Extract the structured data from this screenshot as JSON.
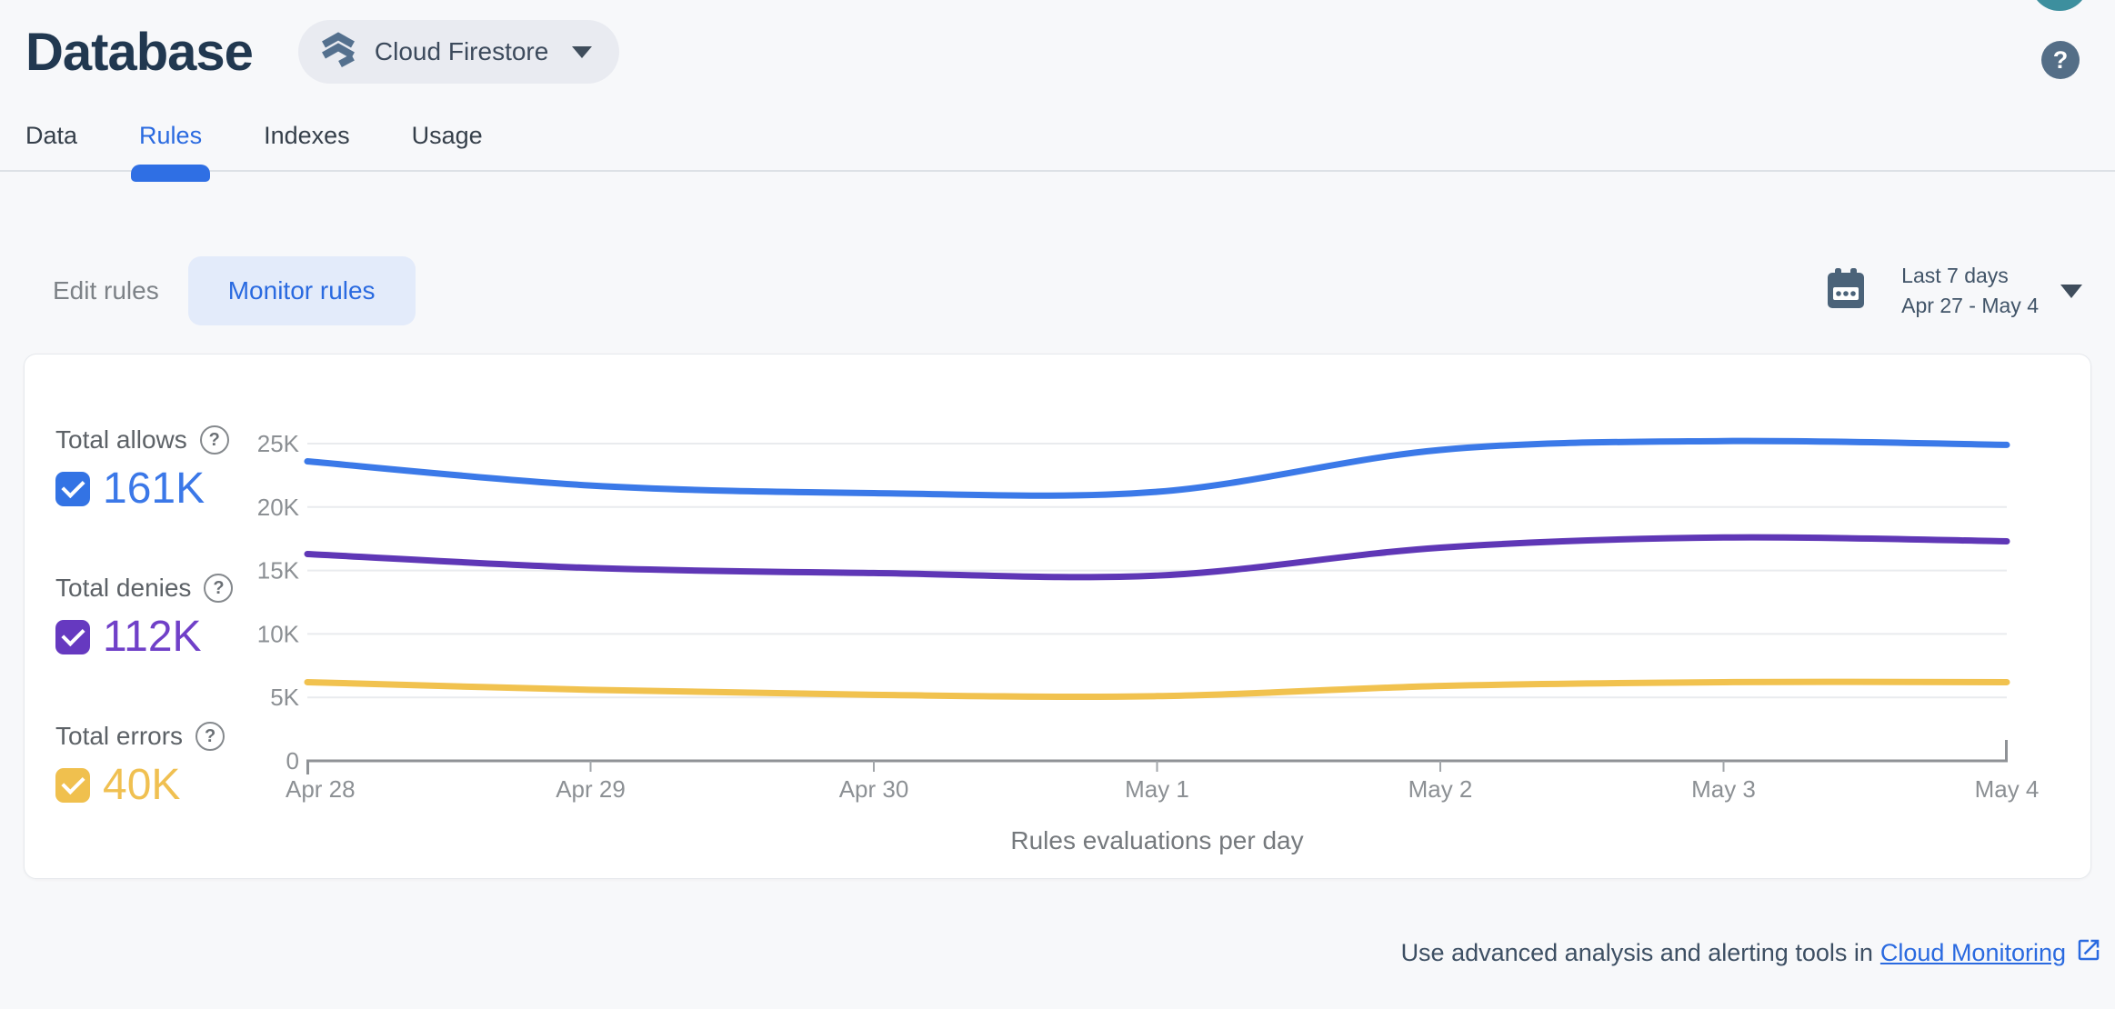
{
  "header": {
    "title": "Database",
    "product_selector": {
      "label": "Cloud Firestore"
    },
    "help_glyph": "?"
  },
  "tabs": [
    {
      "label": "Data",
      "active": false
    },
    {
      "label": "Rules",
      "active": true
    },
    {
      "label": "Indexes",
      "active": false
    },
    {
      "label": "Usage",
      "active": false
    }
  ],
  "toolbar": {
    "edit_rules_label": "Edit rules",
    "monitor_rules_label": "Monitor rules",
    "date_range": {
      "primary": "Last 7 days",
      "secondary": "Apr 27 - May 4"
    }
  },
  "legend": [
    {
      "label": "Total allows",
      "value": "161K",
      "color": "#3373e4",
      "text_color": "#3b78e8",
      "checked": true
    },
    {
      "label": "Total denies",
      "value": "112K",
      "color": "#6639c0",
      "text_color": "#7040c8",
      "checked": true
    },
    {
      "label": "Total errors",
      "value": "40K",
      "color": "#f0c04e",
      "text_color": "#f0c051",
      "checked": true
    }
  ],
  "chart_data": {
    "type": "line",
    "title": "Rules evaluations per day",
    "x": [
      "Apr 28",
      "Apr 29",
      "Apr 30",
      "May 1",
      "May 2",
      "May 3",
      "May 4"
    ],
    "series": [
      {
        "name": "Total allows",
        "color": "#3b79e8",
        "values": [
          23600,
          21700,
          21100,
          21200,
          24500,
          25200,
          24900
        ]
      },
      {
        "name": "Total denies",
        "color": "#5f37b6",
        "values": [
          16300,
          15200,
          14800,
          14600,
          16800,
          17600,
          17300
        ]
      },
      {
        "name": "Total errors",
        "color": "#f1c24f",
        "values": [
          6200,
          5600,
          5200,
          5100,
          5900,
          6200,
          6200
        ]
      }
    ],
    "ylim": [
      0,
      25000
    ],
    "yticks": [
      0,
      5000,
      10000,
      15000,
      20000,
      25000
    ],
    "ytick_labels": [
      "0",
      "5K",
      "10K",
      "15K",
      "20K",
      "25K"
    ],
    "grid": true,
    "legend_position": "left"
  },
  "footer": {
    "text": "Use advanced analysis and alerting tools in",
    "link": "Cloud Monitoring"
  },
  "colors": {
    "accent_blue": "#2a6ae0",
    "avatar_teal": "#3d8f9e",
    "slate_icon": "#54708e"
  }
}
